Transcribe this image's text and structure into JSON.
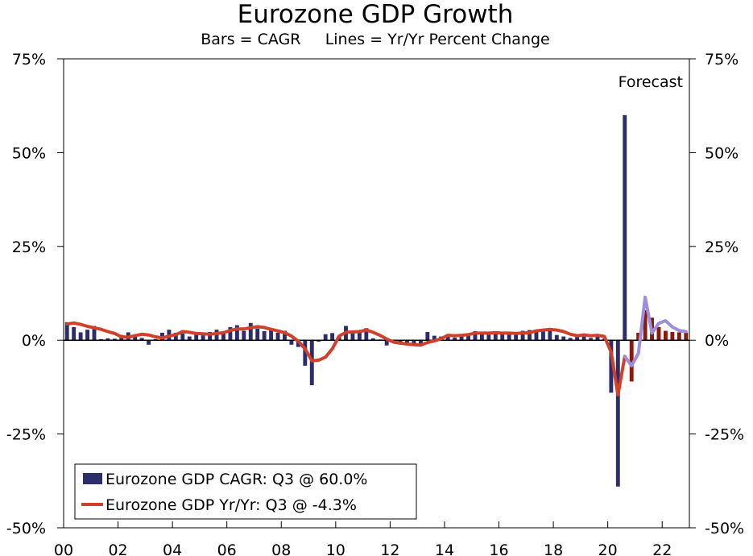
{
  "chart_data": {
    "type": "bar+line",
    "title": "Eurozone GDP Growth",
    "subtitle": "Bars = CAGR     Lines = Yr/Yr Percent Change",
    "annotation": "Forecast",
    "ylim": [
      -50,
      75
    ],
    "yticks": [
      75,
      50,
      25,
      0,
      -25,
      -50
    ],
    "ytick_labels": [
      "75%",
      "50%",
      "25%",
      "0%",
      "-25%",
      "-50%"
    ],
    "xlim": [
      2000.0,
      2023.0
    ],
    "xticks": [
      2000,
      2002,
      2004,
      2006,
      2008,
      2010,
      2012,
      2014,
      2016,
      2018,
      2020,
      2022
    ],
    "xtick_labels": [
      "00",
      "02",
      "04",
      "06",
      "08",
      "10",
      "12",
      "14",
      "16",
      "18",
      "20",
      "22"
    ],
    "legend": {
      "position": "bottom-left",
      "entries": [
        "Eurozone GDP CAGR: Q3 @ 60.0%",
        "Eurozone GDP Yr/Yr: Q3 @ -4.3%"
      ]
    },
    "colors": {
      "bars_actual": "#2e2d6b",
      "bars_forecast": "#8b1a0e",
      "line_actual": "#d0412c",
      "line_forecast": "#9f8fdb"
    },
    "forecast_start": "2020Q4",
    "quarters": [
      "2000Q1",
      "2000Q2",
      "2000Q3",
      "2000Q4",
      "2001Q1",
      "2001Q2",
      "2001Q3",
      "2001Q4",
      "2002Q1",
      "2002Q2",
      "2002Q3",
      "2002Q4",
      "2003Q1",
      "2003Q2",
      "2003Q3",
      "2003Q4",
      "2004Q1",
      "2004Q2",
      "2004Q3",
      "2004Q4",
      "2005Q1",
      "2005Q2",
      "2005Q3",
      "2005Q4",
      "2006Q1",
      "2006Q2",
      "2006Q3",
      "2006Q4",
      "2007Q1",
      "2007Q2",
      "2007Q3",
      "2007Q4",
      "2008Q1",
      "2008Q2",
      "2008Q3",
      "2008Q4",
      "2009Q1",
      "2009Q2",
      "2009Q3",
      "2009Q4",
      "2010Q1",
      "2010Q2",
      "2010Q3",
      "2010Q4",
      "2011Q1",
      "2011Q2",
      "2011Q3",
      "2011Q4",
      "2012Q1",
      "2012Q2",
      "2012Q3",
      "2012Q4",
      "2013Q1",
      "2013Q2",
      "2013Q3",
      "2013Q4",
      "2014Q1",
      "2014Q2",
      "2014Q3",
      "2014Q4",
      "2015Q1",
      "2015Q2",
      "2015Q3",
      "2015Q4",
      "2016Q1",
      "2016Q2",
      "2016Q3",
      "2016Q4",
      "2017Q1",
      "2017Q2",
      "2017Q3",
      "2017Q4",
      "2018Q1",
      "2018Q2",
      "2018Q3",
      "2018Q4",
      "2019Q1",
      "2019Q2",
      "2019Q3",
      "2019Q4",
      "2020Q1",
      "2020Q2",
      "2020Q3",
      "2020Q4",
      "2021Q1",
      "2021Q2",
      "2021Q3",
      "2021Q4",
      "2022Q1",
      "2022Q2",
      "2022Q3",
      "2022Q4"
    ],
    "cagr": [
      4.8,
      3.5,
      2.1,
      2.8,
      3.8,
      0.3,
      0.5,
      0.4,
      1.4,
      2.1,
      1.5,
      0.6,
      -1.2,
      0.3,
      2.0,
      2.8,
      2.0,
      1.8,
      1.0,
      1.5,
      1.3,
      2.2,
      2.8,
      2.2,
      3.5,
      4.0,
      2.5,
      4.6,
      3.1,
      2.4,
      2.8,
      2.0,
      2.5,
      -1.2,
      -1.8,
      -6.8,
      -12.0,
      -0.4,
      1.6,
      1.9,
      1.1,
      3.8,
      1.9,
      2.3,
      3.2,
      0.5,
      0.2,
      -1.4,
      -0.2,
      -0.6,
      -0.6,
      -1.0,
      -1.2,
      2.2,
      1.2,
      1.0,
      1.5,
      0.7,
      1.6,
      1.5,
      2.4,
      1.8,
      1.5,
      1.9,
      2.1,
      1.6,
      1.9,
      2.5,
      2.7,
      2.6,
      2.8,
      2.6,
      1.4,
      1.0,
      0.6,
      1.4,
      1.8,
      0.6,
      1.2,
      0.4,
      -14.0,
      -39.0,
      60.0,
      -11.0,
      2.0,
      8.0,
      6.0,
      3.5,
      2.5,
      2.2,
      2.1,
      2.0
    ],
    "yoy_actual": [
      4.3,
      4.6,
      4.2,
      3.7,
      3.3,
      2.9,
      2.3,
      1.8,
      0.9,
      0.8,
      1.2,
      1.6,
      1.4,
      0.9,
      0.6,
      1.1,
      1.5,
      2.3,
      2.1,
      1.8,
      1.7,
      1.6,
      1.8,
      2.0,
      2.6,
      3.0,
      3.0,
      3.3,
      3.6,
      3.4,
      2.9,
      2.5,
      2.0,
      1.1,
      -0.3,
      -2.3,
      -5.5,
      -5.3,
      -4.5,
      -2.3,
      1.1,
      2.1,
      2.2,
      2.3,
      2.7,
      2.1,
      1.3,
      0.3,
      -0.5,
      -0.8,
      -1.0,
      -1.2,
      -1.3,
      -0.6,
      -0.2,
      0.4,
      1.3,
      1.2,
      1.3,
      1.5,
      1.9,
      1.9,
      1.9,
      2.0,
      1.9,
      1.9,
      1.8,
      1.9,
      2.0,
      2.5,
      2.7,
      2.9,
      2.7,
      2.3,
      1.6,
      1.2,
      1.4,
      1.2,
      1.3,
      1.0,
      -3.2,
      -14.6,
      -4.3
    ],
    "yoy_forecast": [
      -4.3,
      -6.8,
      -3.5,
      11.5,
      1.9,
      4.5,
      5.2,
      3.5,
      2.6,
      2.3
    ]
  }
}
